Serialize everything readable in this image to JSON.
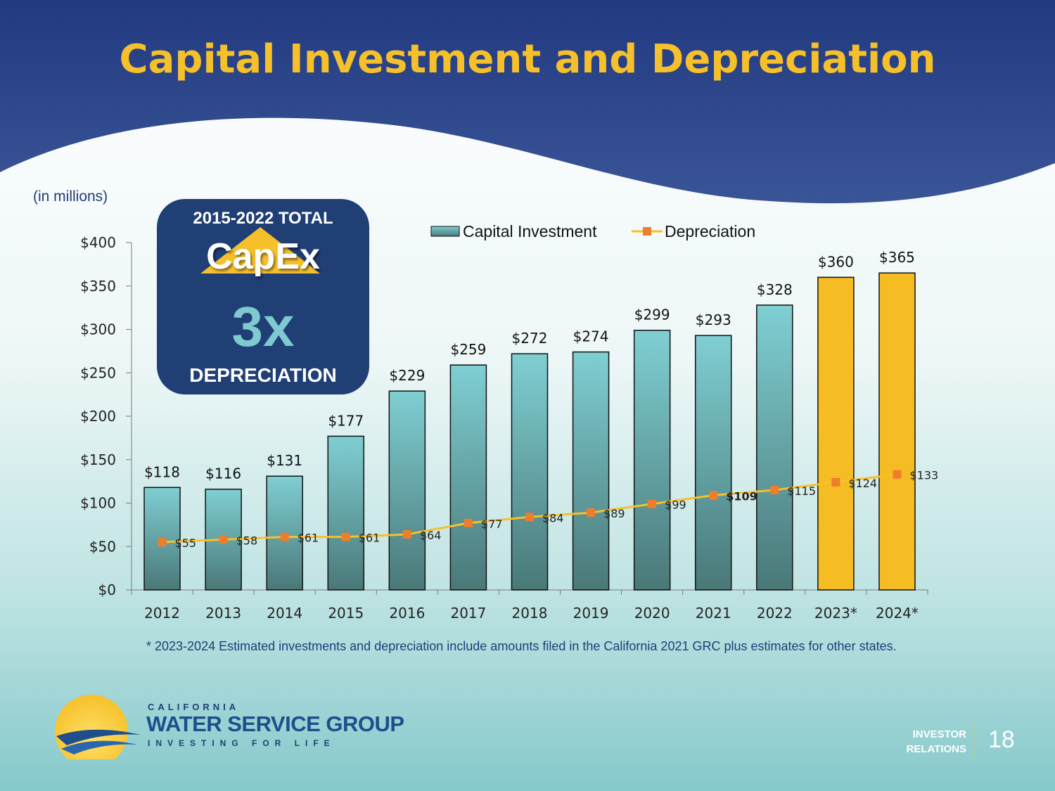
{
  "slide": {
    "title": "Capital Investment and Depreciation",
    "units_label": "(in millions)",
    "footnote": "* 2023-2024 Estimated investments and depreciation include amounts filed in the California 2021 GRC plus estimates for other states.",
    "page_number": "18"
  },
  "callout": {
    "total_label": "2015-2022 TOTAL",
    "capex_label": "CapEx",
    "multiplier": "3x",
    "depreciation_label": "DEPRECIATION"
  },
  "logo": {
    "top_text": "CALIFORNIA",
    "main_text": "WATER SERVICE GROUP",
    "tagline": "INVESTING FOR LIFE"
  },
  "investor_relations": {
    "line1": "INVESTOR",
    "line2": "RELATIONS"
  },
  "colors": {
    "header": "#233f84",
    "title": "#f6c02b",
    "bar_top": "#7fcfd3",
    "bar_bottom": "#4a7878",
    "bar_estimate": "#f6bc24",
    "dep_line": "#f6c02b",
    "dep_marker": "#ee7d2c"
  },
  "chart_data": {
    "type": "bar",
    "categories": [
      "2012",
      "2013",
      "2014",
      "2015",
      "2016",
      "2017",
      "2018",
      "2019",
      "2020",
      "2021",
      "2022",
      "2023*",
      "2024*"
    ],
    "series": [
      {
        "name": "Capital Investment",
        "type": "bar",
        "values": [
          118,
          116,
          131,
          177,
          229,
          259,
          272,
          274,
          299,
          293,
          328,
          360,
          365
        ],
        "labels": [
          "$118",
          "$116",
          "$131",
          "$177",
          "$229",
          "$259",
          "$272",
          "$274",
          "$299",
          "$293",
          "$328",
          "$360",
          "$365"
        ],
        "estimated": [
          false,
          false,
          false,
          false,
          false,
          false,
          false,
          false,
          false,
          false,
          false,
          true,
          true
        ]
      },
      {
        "name": "Depreciation",
        "type": "line",
        "values": [
          55,
          58,
          61,
          61,
          64,
          77,
          84,
          89,
          99,
          109,
          115,
          124,
          133
        ],
        "labels": [
          "$55",
          "$58",
          "$61",
          "$61",
          "$64",
          "$77",
          "$84",
          "$89",
          "$99",
          "$109",
          "$115",
          "$124",
          "$133"
        ]
      }
    ],
    "yticks": [
      "$0",
      "$50",
      "$100",
      "$150",
      "$200",
      "$250",
      "$300",
      "$350",
      "$400"
    ],
    "ylim": [
      0,
      400
    ],
    "ystep": 50,
    "legend_position": "top-right",
    "grid": false
  }
}
